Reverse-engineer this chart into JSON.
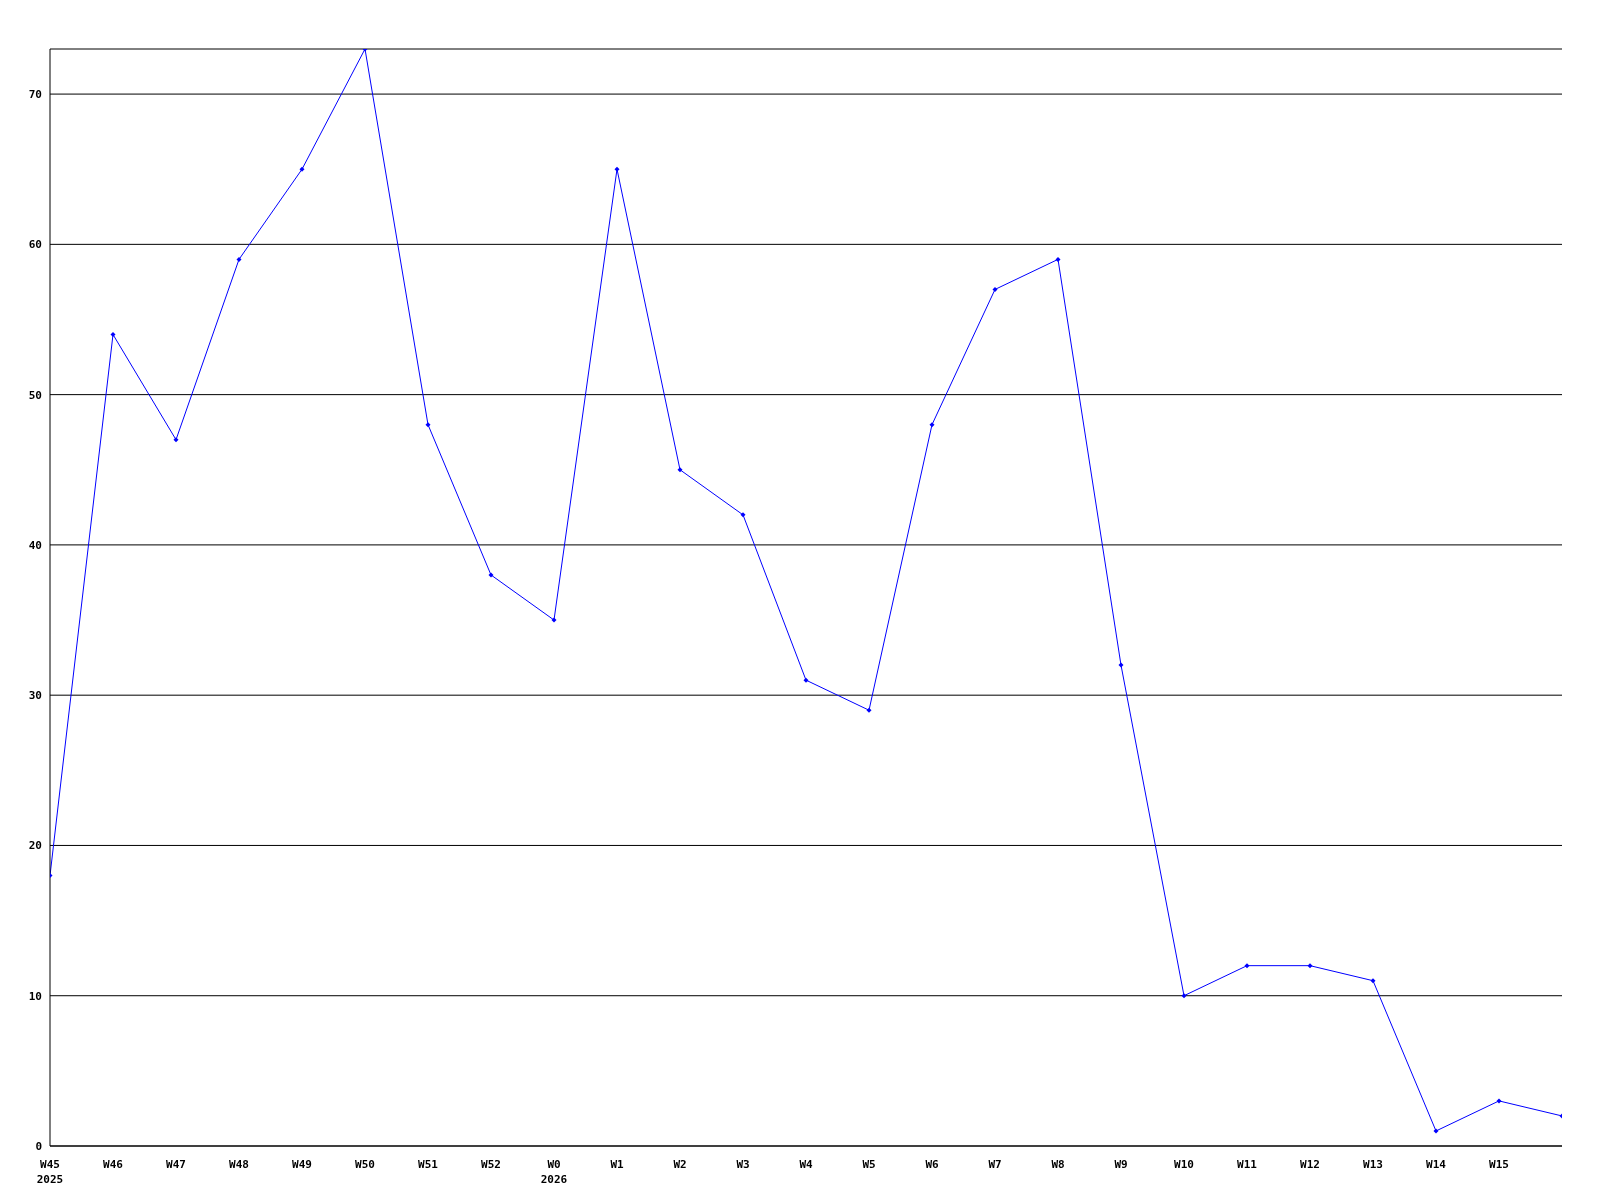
{
  "chart_data": {
    "type": "line",
    "categories": [
      "W45\n2025",
      "W46",
      "W47",
      "W48",
      "W49",
      "W50",
      "W51",
      "W52",
      "W0\n2026",
      "W1",
      "W2",
      "W3",
      "W4",
      "W5",
      "W6",
      "W7",
      "W8",
      "W9",
      "W10",
      "W11",
      "W12",
      "W13",
      "W14",
      "W15",
      null
    ],
    "series": [
      {
        "color": "#0000ff",
        "values": [
          18,
          54,
          47,
          59,
          65,
          73,
          48,
          38,
          35,
          65,
          45,
          42,
          31,
          29,
          48,
          57,
          59,
          32,
          10,
          12,
          12,
          11,
          1,
          3,
          2
        ]
      }
    ],
    "ylim": [
      0,
      73
    ],
    "yticks": [
      0,
      10,
      20,
      30,
      40,
      50,
      60,
      70
    ],
    "grid": "y",
    "marker": "diamond",
    "line_style": "solid"
  }
}
